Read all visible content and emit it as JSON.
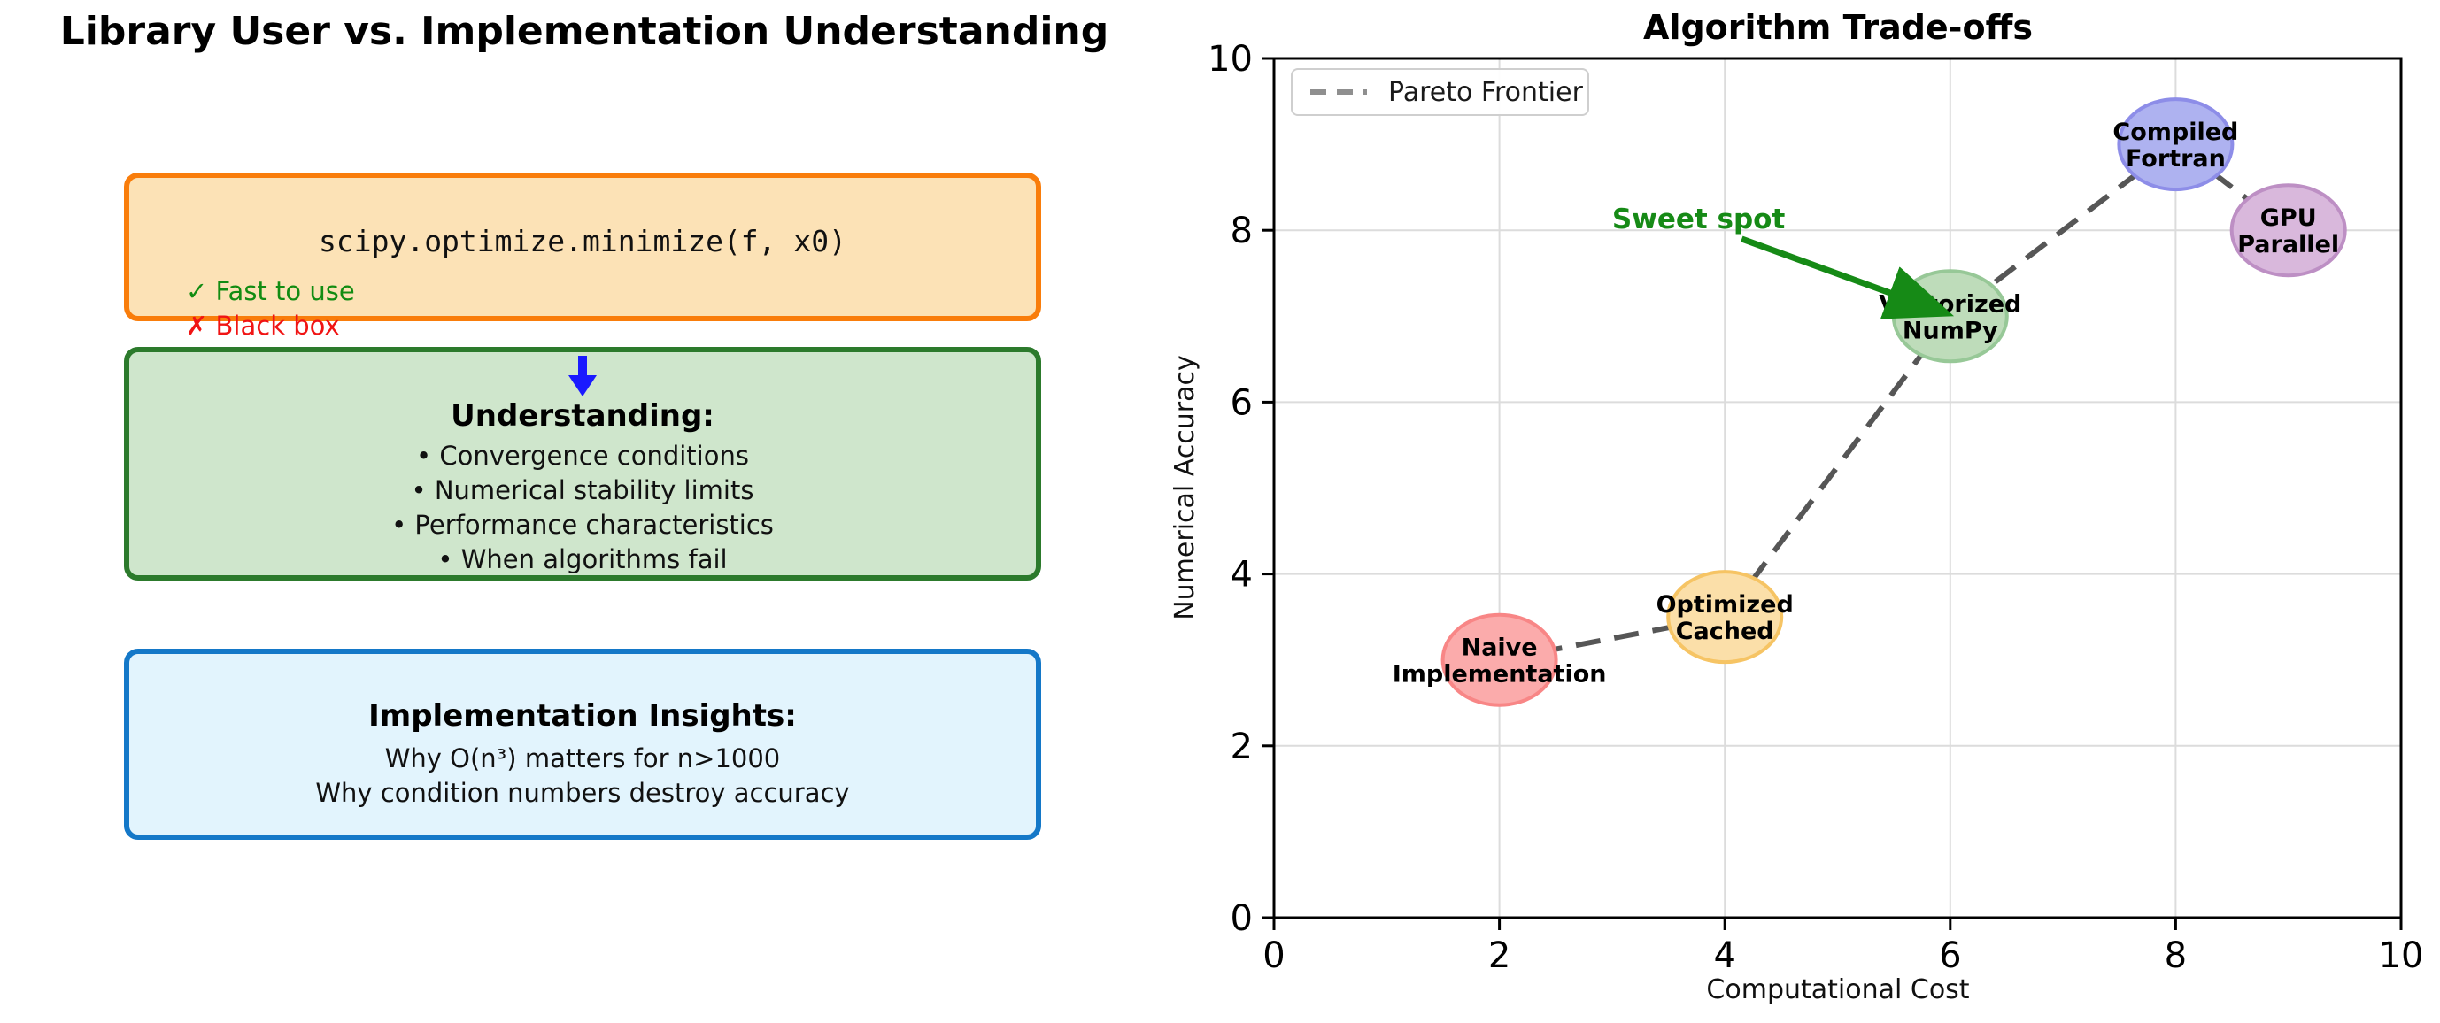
{
  "left_panel": {
    "title": "Library User vs. Implementation Understanding",
    "api_box": {
      "code": "scipy.optimize.minimize(f, x0)",
      "check_icon": "✓",
      "pro_label": "Fast to use",
      "cross_icon": "✗",
      "con_label": "Black box",
      "pro_color": "#128c12",
      "con_color": "#f01414",
      "fill": "#fce2b6",
      "border": "#f97d0b"
    },
    "understanding_box": {
      "heading": "Understanding:",
      "bullets": [
        "• Convergence conditions",
        "• Numerical stability limits",
        "• Performance characteristics",
        "• When algorithms fail"
      ],
      "fill": "#cfe6cc",
      "border": "#2c7a2c",
      "arrow_color": "#1a1aff"
    },
    "insights_box": {
      "heading": "Implementation Insights:",
      "lines": [
        "Why O(n³) matters for n>1000",
        "Why condition numbers destroy accuracy"
      ],
      "fill": "#e2f4fd",
      "border": "#1478c8"
    }
  },
  "chart_data": {
    "type": "scatter",
    "title": "Algorithm Trade-offs",
    "xlabel": "Computational Cost",
    "ylabel": "Numerical Accuracy",
    "xlim": [
      0,
      10
    ],
    "ylim": [
      0,
      10
    ],
    "xticks": [
      0,
      2,
      4,
      6,
      8,
      10
    ],
    "yticks": [
      0,
      2,
      4,
      6,
      8,
      10
    ],
    "grid": true,
    "legend": {
      "label": "Pareto Frontier",
      "position": "upper left",
      "line_color": "#8f8f8f"
    },
    "points": [
      {
        "label": "Naive Implementation",
        "label_lines": [
          "Naive",
          "Implementation"
        ],
        "x": 2,
        "y": 3,
        "fill": "#fbabab",
        "edge": "#f88686"
      },
      {
        "label": "Optimized Cached",
        "label_lines": [
          "Optimized",
          "Cached"
        ],
        "x": 4,
        "y": 3.5,
        "fill": "#fbdfa9",
        "edge": "#f6c464"
      },
      {
        "label": "Vectorized NumPy",
        "label_lines": [
          "Vectorized",
          "NumPy"
        ],
        "x": 6,
        "y": 7,
        "fill": "#bedcba",
        "edge": "#97c897"
      },
      {
        "label": "Compiled Fortran",
        "label_lines": [
          "Compiled",
          "Fortran"
        ],
        "x": 8,
        "y": 9,
        "fill": "#aeb2f0",
        "edge": "#8d8de8"
      },
      {
        "label": "GPU Parallel",
        "label_lines": [
          "GPU",
          "Parallel"
        ],
        "x": 9,
        "y": 8,
        "fill": "#d9b8dc",
        "edge": "#bd8fc4"
      }
    ],
    "pareto_line": {
      "points": [
        [
          2,
          3
        ],
        [
          4,
          3.5
        ],
        [
          6,
          7
        ],
        [
          8,
          9
        ],
        [
          9,
          8
        ]
      ],
      "color": "#565656",
      "style": "dashed"
    },
    "annotation": {
      "text": "Sweet spot",
      "color": "#168a16",
      "text_pos": [
        3.0,
        8.0
      ],
      "arrow_from": [
        4.15,
        7.9
      ],
      "arrow_to": [
        5.93,
        7.05
      ]
    }
  }
}
